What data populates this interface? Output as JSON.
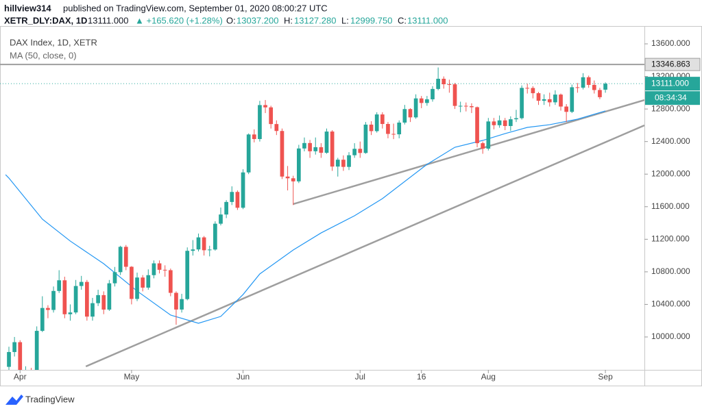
{
  "header": {
    "publisher": "hillview314",
    "published": "published on TradingView.com, September 01, 2020 08:00:27 UTC"
  },
  "quote": {
    "symbol": "XETR_DLY:DAX, 1D",
    "last": "13111.000",
    "change": "▲ +165.620 (+1.28%)",
    "open_label": "O:",
    "open": "13037.200",
    "high_label": "H:",
    "high": "13127.280",
    "low_label": "L:",
    "low": "12999.750",
    "close_label": "C:",
    "close": "13111.000"
  },
  "legend": {
    "instrument": "DAX Index, 1D, XETR",
    "indicator": "MA (50, close, 0)"
  },
  "footer": {
    "brand": "TradingView"
  },
  "chart_data": {
    "type": "candlestick",
    "up_color": "#26a69a",
    "down_color": "#ef5350",
    "xlim": [
      -1.6,
      114
    ],
    "ylim": [
      9596,
      13819
    ],
    "xticks": [
      {
        "value": 2,
        "label": "Apr"
      },
      {
        "value": 22,
        "label": "May"
      },
      {
        "value": 42,
        "label": "Jun"
      },
      {
        "value": 63,
        "label": "Jul"
      },
      {
        "value": 74,
        "label": "16"
      },
      {
        "value": 86,
        "label": "Aug"
      },
      {
        "value": 107,
        "label": "Sep"
      }
    ],
    "yticks": [
      {
        "value": 10000,
        "label": "10000.000"
      },
      {
        "value": 10400,
        "label": "10400.000"
      },
      {
        "value": 10800,
        "label": "10800.000"
      },
      {
        "value": 11200,
        "label": "11200.000"
      },
      {
        "value": 11600,
        "label": "11600.000"
      },
      {
        "value": 12000,
        "label": "12000.000"
      },
      {
        "value": 12400,
        "label": "12400.000"
      },
      {
        "value": 12800,
        "label": "12800.000"
      },
      {
        "value": 13200,
        "label": "13200.000"
      },
      {
        "value": 13600,
        "label": "13600.000"
      }
    ],
    "open": [
      9633,
      9815,
      9936,
      9544,
      9571,
      9525,
      10075,
      10356,
      10332,
      10565,
      10696,
      10279,
      10301,
      10626,
      10676,
      10250,
      10415,
      10514,
      10336,
      10659,
      10796,
      11107,
      10862,
      10467,
      10730,
      10606,
      10759,
      10904,
      10825,
      10820,
      10542,
      10337,
      10465,
      11058,
      11075,
      11223,
      11065,
      11074,
      11391,
      11504,
      11658,
      11781,
      11587,
      12021,
      12487,
      12431,
      12848,
      12820,
      12615,
      12530,
      11970,
      11949,
      11911,
      12315,
      12382,
      12281,
      12331,
      12262,
      12523,
      12093,
      12177,
      12089,
      12232,
      12311,
      12260,
      12608,
      12528,
      12733,
      12616,
      12494,
      12489,
      12633,
      12799,
      12697,
      12930,
      12874,
      12919,
      13046,
      13171,
      13104,
      13103,
      12838,
      12839,
      12835,
      12822,
      12380,
      12313,
      12647,
      12601,
      12660,
      12591,
      12674,
      12687,
      13059,
      13058,
      12994,
      12901,
      12920,
      12882,
      12977,
      12830,
      12765,
      13067,
      13062,
      13190,
      13096,
      13033,
      13037.2
    ],
    "high": [
      9880,
      10000,
      9960,
      9640,
      9620,
      10130,
      10500,
      10390,
      10620,
      10820,
      10740,
      10400,
      10700,
      10750,
      10700,
      10480,
      10580,
      10560,
      10700,
      10860,
      11120,
      11130,
      10870,
      10790,
      10760,
      10830,
      10940,
      10940,
      10880,
      10840,
      10560,
      10530,
      11100,
      11190,
      11270,
      11240,
      11120,
      11420,
      11590,
      11680,
      11850,
      11800,
      12060,
      12500,
      12550,
      12900,
      12910,
      12840,
      12660,
      12560,
      12100,
      11980,
      12360,
      12450,
      12420,
      12450,
      12380,
      12560,
      12540,
      12200,
      12230,
      12270,
      12380,
      12400,
      12640,
      12650,
      12760,
      12760,
      12640,
      12620,
      12660,
      12850,
      12810,
      12980,
      12960,
      12960,
      13080,
      13310,
      13200,
      13160,
      13120,
      12890,
      12880,
      12870,
      12830,
      12400,
      12690,
      12690,
      12720,
      12690,
      12710,
      12790,
      13090,
      13110,
      13080,
      13010,
      12980,
      13000,
      13030,
      12990,
      12860,
      13100,
      13120,
      13240,
      13210,
      13150,
      13060,
      13127.28
    ],
    "low": [
      9560,
      9760,
      9480,
      9480,
      9460,
      9500,
      10060,
      10230,
      10300,
      10540,
      10230,
      10200,
      10280,
      10580,
      10200,
      10200,
      10380,
      10280,
      10320,
      10620,
      10760,
      10820,
      10400,
      10440,
      10560,
      10580,
      10720,
      10780,
      10740,
      10500,
      10150,
      10300,
      10450,
      11000,
      11050,
      11000,
      10990,
      11060,
      11370,
      11460,
      11620,
      11560,
      11570,
      12000,
      12390,
      12400,
      12750,
      12560,
      12480,
      11940,
      11800,
      11620,
      11890,
      12280,
      12200,
      12240,
      12200,
      12250,
      12040,
      11970,
      12040,
      12050,
      12200,
      12200,
      12250,
      12480,
      12510,
      12560,
      12440,
      12430,
      12440,
      12610,
      12640,
      12680,
      12810,
      12840,
      12890,
      13030,
      13050,
      13000,
      12800,
      12760,
      12770,
      12750,
      12330,
      12250,
      12290,
      12550,
      12570,
      12540,
      12530,
      12640,
      12670,
      12990,
      12930,
      12850,
      12850,
      12830,
      12850,
      12780,
      12640,
      12750,
      13000,
      13040,
      13060,
      12990,
      12920,
      12999.75
    ],
    "close": [
      9815,
      9936,
      9544,
      9571,
      9525,
      10075,
      10356,
      10332,
      10565,
      10696,
      10279,
      10301,
      10626,
      10676,
      10250,
      10415,
      10514,
      10336,
      10659,
      10796,
      11107,
      10862,
      10467,
      10730,
      10606,
      10759,
      10904,
      10825,
      10820,
      10542,
      10337,
      10465,
      11058,
      11075,
      11223,
      11065,
      11074,
      11391,
      11504,
      11658,
      11781,
      11587,
      12021,
      12487,
      12431,
      12848,
      12820,
      12615,
      12530,
      11970,
      11949,
      11911,
      12315,
      12382,
      12281,
      12331,
      12262,
      12523,
      12093,
      12177,
      12089,
      12232,
      12311,
      12260,
      12608,
      12528,
      12733,
      12616,
      12494,
      12489,
      12633,
      12799,
      12697,
      12930,
      12874,
      12919,
      13046,
      13171,
      13104,
      13103,
      12838,
      12839,
      12835,
      12822,
      12380,
      12313,
      12647,
      12601,
      12660,
      12591,
      12674,
      12687,
      13059,
      13058,
      12994,
      12901,
      12920,
      12882,
      12977,
      12830,
      12765,
      13067,
      13062,
      13190,
      13096,
      13033,
      12945,
      13111
    ],
    "ma": {
      "color": "#2196f3",
      "x": [
        -0.6,
        0,
        6,
        11,
        17,
        23,
        29,
        34,
        38,
        42,
        45,
        51,
        56,
        62,
        67,
        75,
        80,
        85,
        89,
        93,
        97,
        102,
        107
      ],
      "values": [
        11993,
        11951,
        11447,
        11178,
        10900,
        10564,
        10269,
        10168,
        10252,
        10521,
        10774,
        11068,
        11278,
        11489,
        11699,
        12120,
        12330,
        12414,
        12498,
        12574,
        12607,
        12675,
        12776
      ]
    },
    "trendlines": [
      {
        "color": "#9e9e9e",
        "x": [
          51,
          114
        ],
        "values": [
          11632,
          12910
        ]
      },
      {
        "color": "#9e9e9e",
        "x": [
          13.8,
          114
        ],
        "values": [
          9638,
          12599
        ]
      }
    ],
    "hline": {
      "value": 13346.863,
      "color": "#9e9e9e"
    },
    "last_price": {
      "value": 13111,
      "label": "13111.000",
      "countdown": "08:34:34"
    }
  }
}
